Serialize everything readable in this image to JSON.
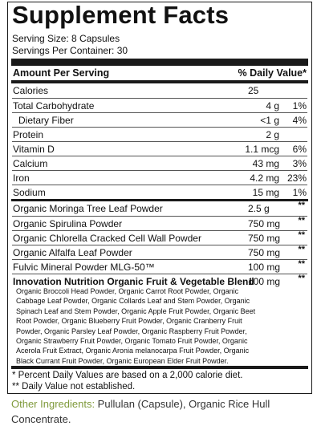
{
  "title": "Supplement Facts",
  "serving_size": "Serving Size: 8 Capsules",
  "servings_per_container": "Servings Per Container: 30",
  "header": {
    "amount": "Amount Per Serving",
    "dv": "% Daily Value*"
  },
  "nutrients": [
    {
      "name": "Calories",
      "amount": "25",
      "dv": ""
    },
    {
      "name": "Total Carbohydrate",
      "amount": "4 g",
      "dv": "1%"
    },
    {
      "name": "Dietary Fiber",
      "amount": "<1 g",
      "dv": "4%"
    },
    {
      "name": "Protein",
      "amount": "2 g",
      "dv": ""
    },
    {
      "name": "Vitamin D",
      "amount": "1.1 mcg",
      "dv": "6%"
    },
    {
      "name": "Calcium",
      "amount": "43 mg",
      "dv": "3%"
    },
    {
      "name": "Iron",
      "amount": "4.2 mg",
      "dv": "23%"
    },
    {
      "name": "Sodium",
      "amount": "15 mg",
      "dv": "1%"
    }
  ],
  "ingredients": [
    {
      "name": "Organic Moringa Tree Leaf Powder",
      "amount": "2.5 g",
      "dv": "**"
    },
    {
      "name": "Organic Spirulina Powder",
      "amount": "750 mg",
      "dv": "**"
    },
    {
      "name": "Organic Chlorella Cracked Cell Wall Powder",
      "amount": "750 mg",
      "dv": "**"
    },
    {
      "name": "Organic Alfalfa Leaf Powder",
      "amount": "750 mg",
      "dv": "**"
    },
    {
      "name": "Fulvic Mineral Powder MLG-50™",
      "amount": "100 mg",
      "dv": "**"
    }
  ],
  "blend": {
    "name": "Innovation Nutrition Organic Fruit & Vegetable Blend",
    "amount": "100 mg",
    "dv": "**",
    "lines": [
      "Organic Broccoli Head Powder, Organic Carrot Root Powder, Organic",
      "Cabbage Leaf Powder, Organic Collards Leaf and Stem Powder, Organic",
      "Spinach Leaf and Stem Powder, Organic Apple Fruit Powder, Organic Beet",
      "Root Powder, Organic Blueberry Fruit Powder, Organic Cranberry Fruit",
      "Powder, Organic Parsley Leaf Powder, Organic Raspberry Fruit Powder,",
      "Organic Strawberry Fruit Powder, Organic Tomato Fruit Powder, Organic",
      "Acerola Fruit Extract, Organic Aronia melanocarpa Fruit Powder, Organic",
      "Black Currant Fruit Powder, Organic European Elder Fruit Powder."
    ]
  },
  "footnote_1": "* Percent Daily Values are based on a 2,000 calorie diet.",
  "footnote_2": "** Daily Value not established.",
  "other_ingredients": {
    "label": "Other Ingredients:",
    "text": " Pullulan (Capsule), Organic Rice Hull Concentrate."
  },
  "colors": {
    "border": "#1a1a1a",
    "other_label": "#7f9a3b"
  }
}
